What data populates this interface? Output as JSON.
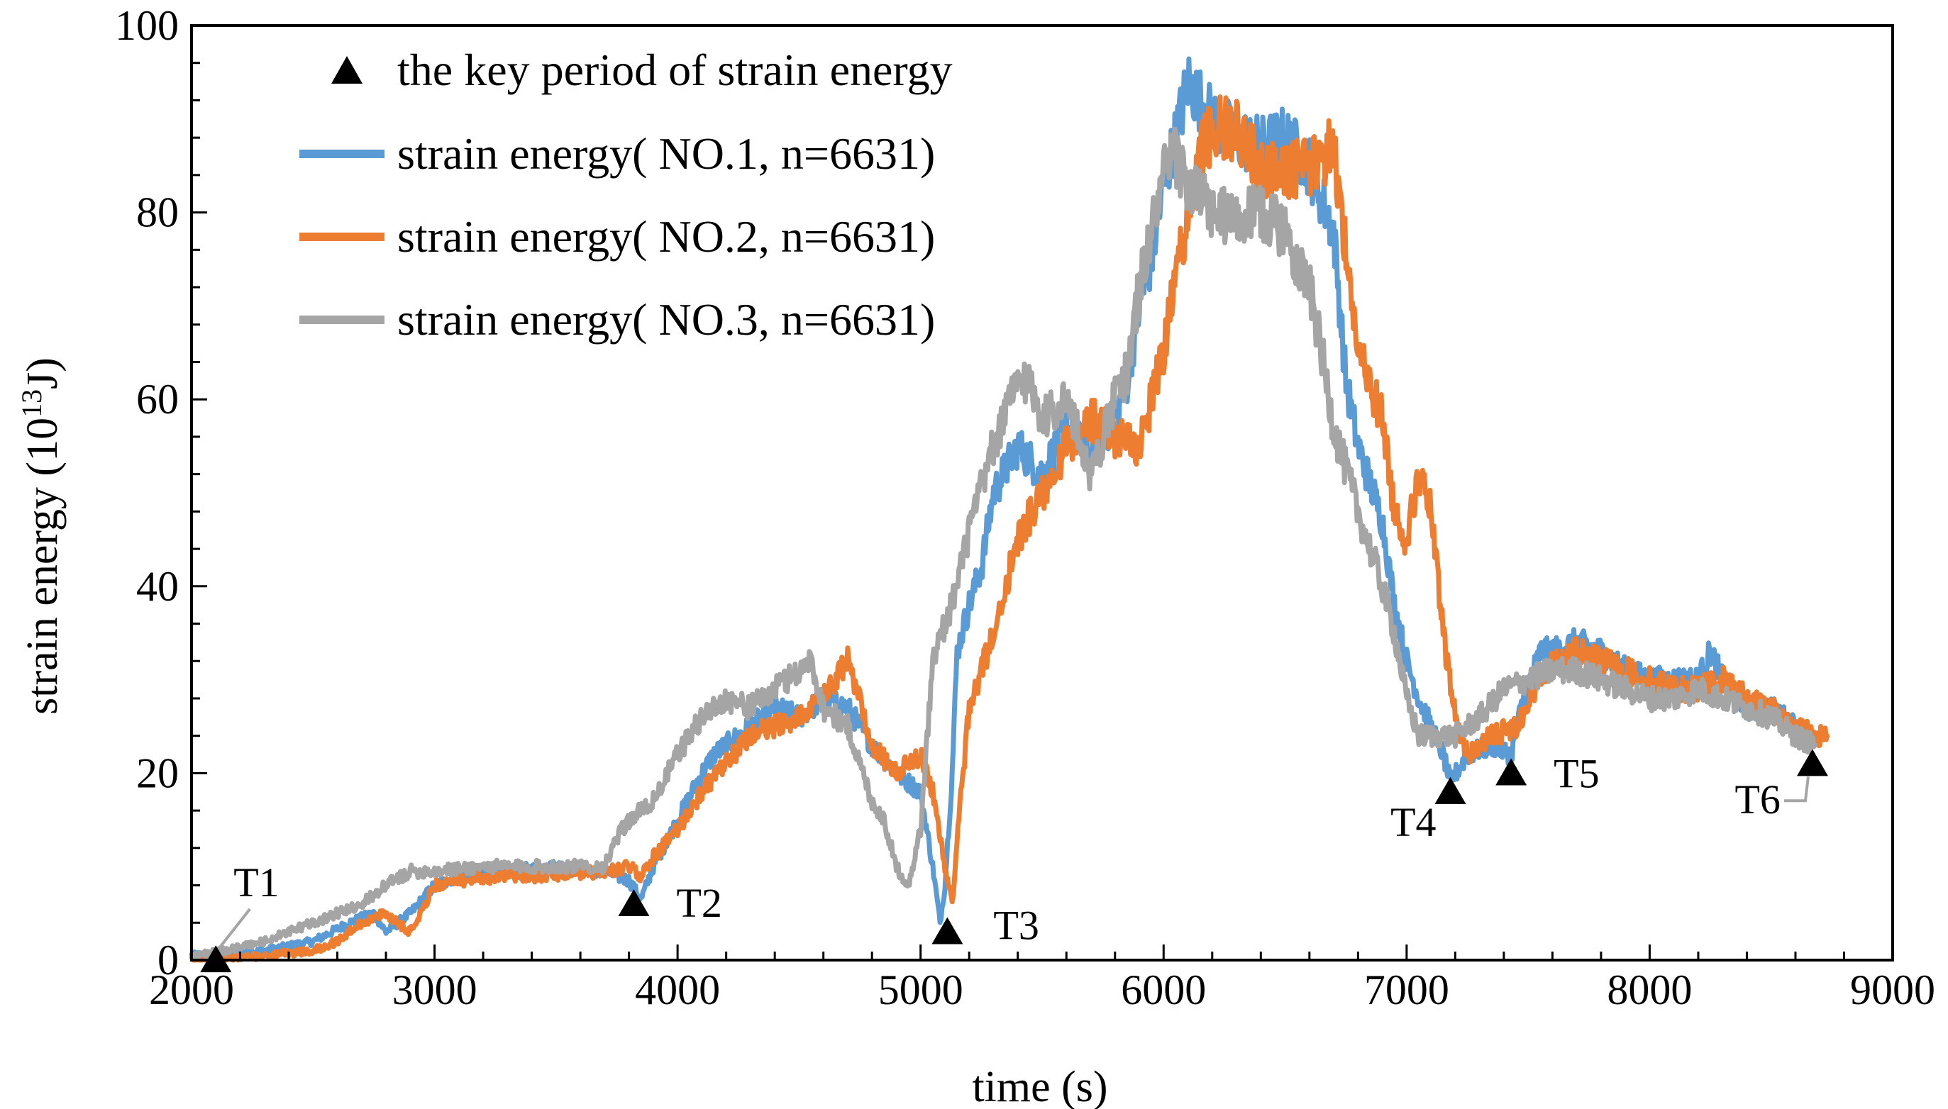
{
  "chart_data": {
    "type": "line",
    "title": "",
    "xlabel": "time (s)",
    "ylabel_main": "strain energy (10",
    "ylabel_sup": "13",
    "ylabel_tail": "J)",
    "xlim": [
      2000,
      9000
    ],
    "ylim": [
      0,
      100
    ],
    "x_ticks": [
      2000,
      3000,
      4000,
      5000,
      6000,
      7000,
      8000,
      9000
    ],
    "y_ticks": [
      0,
      20,
      40,
      60,
      80,
      100
    ],
    "grid": false,
    "legend_position": "top-left",
    "series": [
      {
        "name": "strain energy( NO.1, n=6631)",
        "color": "#5B9BD5",
        "points": [
          [
            2000,
            0.5
          ],
          [
            2100,
            0.6
          ],
          [
            2300,
            1
          ],
          [
            2500,
            2
          ],
          [
            2650,
            4
          ],
          [
            2750,
            5
          ],
          [
            2800,
            3
          ],
          [
            2900,
            5
          ],
          [
            3000,
            8
          ],
          [
            3100,
            9
          ],
          [
            3300,
            9.5
          ],
          [
            3500,
            10
          ],
          [
            3700,
            9.5
          ],
          [
            3800,
            8.5
          ],
          [
            3850,
            6.5
          ],
          [
            3900,
            10
          ],
          [
            4000,
            15
          ],
          [
            4100,
            20
          ],
          [
            4150,
            22
          ],
          [
            4200,
            23
          ],
          [
            4300,
            25
          ],
          [
            4400,
            27
          ],
          [
            4500,
            26
          ],
          [
            4600,
            28
          ],
          [
            4700,
            27
          ],
          [
            4800,
            23
          ],
          [
            4900,
            20
          ],
          [
            5000,
            18
          ],
          [
            5050,
            10
          ],
          [
            5080,
            4
          ],
          [
            5100,
            8
          ],
          [
            5130,
            20
          ],
          [
            5150,
            33
          ],
          [
            5200,
            38
          ],
          [
            5250,
            42
          ],
          [
            5300,
            50
          ],
          [
            5400,
            55
          ],
          [
            5500,
            52
          ],
          [
            5600,
            57
          ],
          [
            5700,
            54
          ],
          [
            5800,
            58
          ],
          [
            5850,
            62
          ],
          [
            5900,
            70
          ],
          [
            5950,
            75
          ],
          [
            6000,
            83
          ],
          [
            6050,
            88
          ],
          [
            6100,
            94
          ],
          [
            6150,
            92
          ],
          [
            6200,
            90
          ],
          [
            6300,
            88
          ],
          [
            6400,
            87
          ],
          [
            6500,
            88
          ],
          [
            6600,
            85
          ],
          [
            6700,
            78
          ],
          [
            6750,
            62
          ],
          [
            6800,
            55
          ],
          [
            6900,
            47
          ],
          [
            6950,
            38
          ],
          [
            7000,
            32
          ],
          [
            7050,
            28
          ],
          [
            7100,
            25
          ],
          [
            7150,
            22
          ],
          [
            7180,
            19
          ],
          [
            7250,
            22
          ],
          [
            7350,
            23
          ],
          [
            7430,
            22
          ],
          [
            7480,
            28
          ],
          [
            7550,
            33
          ],
          [
            7600,
            33
          ],
          [
            7700,
            34
          ],
          [
            7800,
            33
          ],
          [
            7900,
            31
          ],
          [
            8000,
            30
          ],
          [
            8100,
            30
          ],
          [
            8200,
            30
          ],
          [
            8250,
            33
          ],
          [
            8300,
            30
          ],
          [
            8400,
            27
          ],
          [
            8500,
            27
          ],
          [
            8600,
            25
          ],
          [
            8650,
            24
          ],
          [
            8670,
            23
          ]
        ]
      },
      {
        "name": "strain energy( NO.2, n=6631)",
        "color": "#ED7D31",
        "points": [
          [
            2000,
            0
          ],
          [
            2100,
            0
          ],
          [
            2300,
            0.5
          ],
          [
            2500,
            1
          ],
          [
            2600,
            2
          ],
          [
            2700,
            4
          ],
          [
            2800,
            5
          ],
          [
            2900,
            3
          ],
          [
            3000,
            8
          ],
          [
            3100,
            8.5
          ],
          [
            3300,
            9
          ],
          [
            3500,
            9
          ],
          [
            3700,
            9.5
          ],
          [
            3800,
            10
          ],
          [
            3850,
            9
          ],
          [
            3900,
            11
          ],
          [
            4000,
            14
          ],
          [
            4100,
            18
          ],
          [
            4200,
            21
          ],
          [
            4300,
            24
          ],
          [
            4400,
            25
          ],
          [
            4500,
            26
          ],
          [
            4600,
            28
          ],
          [
            4700,
            32
          ],
          [
            4750,
            28
          ],
          [
            4800,
            23
          ],
          [
            4900,
            20
          ],
          [
            5000,
            22
          ],
          [
            5050,
            18
          ],
          [
            5100,
            10
          ],
          [
            5130,
            6
          ],
          [
            5150,
            13
          ],
          [
            5200,
            27
          ],
          [
            5300,
            35
          ],
          [
            5400,
            45
          ],
          [
            5500,
            50
          ],
          [
            5600,
            55
          ],
          [
            5700,
            58
          ],
          [
            5800,
            56
          ],
          [
            5900,
            55
          ],
          [
            6000,
            65
          ],
          [
            6050,
            73
          ],
          [
            6100,
            80
          ],
          [
            6150,
            86
          ],
          [
            6200,
            89
          ],
          [
            6300,
            89
          ],
          [
            6400,
            85
          ],
          [
            6500,
            84
          ],
          [
            6600,
            85
          ],
          [
            6700,
            87
          ],
          [
            6750,
            76
          ],
          [
            6800,
            65
          ],
          [
            6900,
            58
          ],
          [
            6950,
            48
          ],
          [
            7000,
            45
          ],
          [
            7050,
            52
          ],
          [
            7100,
            48
          ],
          [
            7150,
            35
          ],
          [
            7200,
            26
          ],
          [
            7250,
            22
          ],
          [
            7350,
            24
          ],
          [
            7450,
            25
          ],
          [
            7550,
            30
          ],
          [
            7600,
            32
          ],
          [
            7700,
            33
          ],
          [
            7800,
            32
          ],
          [
            7900,
            31
          ],
          [
            8000,
            30
          ],
          [
            8100,
            29
          ],
          [
            8200,
            29
          ],
          [
            8300,
            30
          ],
          [
            8350,
            29
          ],
          [
            8400,
            28
          ],
          [
            8500,
            27
          ],
          [
            8600,
            25
          ],
          [
            8700,
            24
          ],
          [
            8730,
            24
          ]
        ]
      },
      {
        "name": "strain energy( NO.3, n=6631)",
        "color": "#A5A5A5",
        "points": [
          [
            2000,
            0.5
          ],
          [
            2100,
            0.8
          ],
          [
            2300,
            2
          ],
          [
            2400,
            3
          ],
          [
            2500,
            4
          ],
          [
            2600,
            5
          ],
          [
            2700,
            6
          ],
          [
            2800,
            8
          ],
          [
            2900,
            9.5
          ],
          [
            3000,
            9.5
          ],
          [
            3200,
            10
          ],
          [
            3400,
            10
          ],
          [
            3600,
            10
          ],
          [
            3700,
            10
          ],
          [
            3750,
            13
          ],
          [
            3800,
            15
          ],
          [
            3900,
            17
          ],
          [
            4000,
            22
          ],
          [
            4050,
            24
          ],
          [
            4100,
            26
          ],
          [
            4200,
            28
          ],
          [
            4300,
            27
          ],
          [
            4400,
            29
          ],
          [
            4500,
            31
          ],
          [
            4550,
            32
          ],
          [
            4600,
            27
          ],
          [
            4700,
            25
          ],
          [
            4800,
            17
          ],
          [
            4850,
            15
          ],
          [
            4900,
            10
          ],
          [
            4950,
            8
          ],
          [
            5000,
            14
          ],
          [
            5050,
            32
          ],
          [
            5100,
            36
          ],
          [
            5150,
            40
          ],
          [
            5200,
            46
          ],
          [
            5300,
            55
          ],
          [
            5400,
            62
          ],
          [
            5450,
            62
          ],
          [
            5500,
            58
          ],
          [
            5600,
            60
          ],
          [
            5700,
            52
          ],
          [
            5800,
            60
          ],
          [
            5850,
            63
          ],
          [
            5900,
            72
          ],
          [
            5950,
            78
          ],
          [
            6000,
            84
          ],
          [
            6050,
            86
          ],
          [
            6100,
            83
          ],
          [
            6200,
            80
          ],
          [
            6300,
            79
          ],
          [
            6400,
            80
          ],
          [
            6500,
            78
          ],
          [
            6600,
            72
          ],
          [
            6650,
            65
          ],
          [
            6700,
            57
          ],
          [
            6800,
            48
          ],
          [
            6900,
            40
          ],
          [
            6950,
            35
          ],
          [
            7000,
            28
          ],
          [
            7050,
            24
          ],
          [
            7100,
            24
          ],
          [
            7200,
            24
          ],
          [
            7300,
            26
          ],
          [
            7400,
            29
          ],
          [
            7500,
            30
          ],
          [
            7600,
            31
          ],
          [
            7700,
            31
          ],
          [
            7800,
            30
          ],
          [
            7900,
            29
          ],
          [
            8000,
            28
          ],
          [
            8100,
            28
          ],
          [
            8200,
            29
          ],
          [
            8300,
            28
          ],
          [
            8400,
            27
          ],
          [
            8500,
            26
          ],
          [
            8600,
            24
          ],
          [
            8680,
            23
          ]
        ]
      }
    ],
    "key_periods": {
      "legend_label": "the key period of strain energy",
      "marker_color": "#000000",
      "points": [
        {
          "label": "T1",
          "x": 2100,
          "y": 0
        },
        {
          "label": "T2",
          "x": 3820,
          "y": 6
        },
        {
          "label": "T3",
          "x": 5110,
          "y": 3
        },
        {
          "label": "T4",
          "x": 7180,
          "y": 18
        },
        {
          "label": "T5",
          "x": 7430,
          "y": 20
        },
        {
          "label": "T6",
          "x": 8670,
          "y": 21
        }
      ]
    }
  }
}
